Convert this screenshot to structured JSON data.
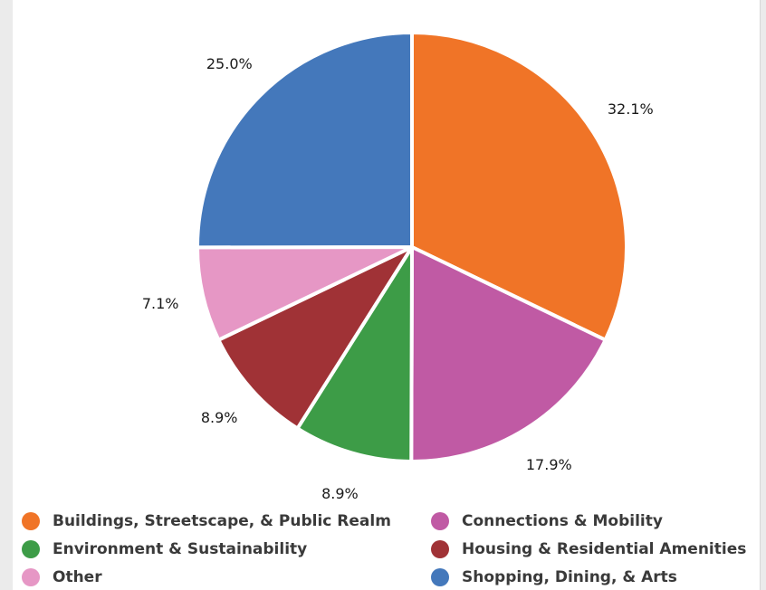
{
  "chart_data": {
    "type": "pie",
    "slices": [
      {
        "label": "Buildings, Streetscape, & Public Realm",
        "value": 32.1,
        "value_label": "32.1%",
        "color": "#f07427"
      },
      {
        "label": "Connections & Mobility",
        "value": 17.9,
        "value_label": "17.9%",
        "color": "#c05aa4"
      },
      {
        "label": "Environment & Sustainability",
        "value": 8.9,
        "value_label": "8.9%",
        "color": "#3d9c47"
      },
      {
        "label": "Housing & Residential Amenities",
        "value": 8.9,
        "value_label": "8.9%",
        "color": "#a03236"
      },
      {
        "label": "Other",
        "value": 7.1,
        "value_label": "7.1%",
        "color": "#e697c5"
      },
      {
        "label": "Shopping, Dining, & Arts",
        "value": 25.0,
        "value_label": "25.0%",
        "color": "#4478bb"
      }
    ],
    "legend_position": "bottom"
  }
}
